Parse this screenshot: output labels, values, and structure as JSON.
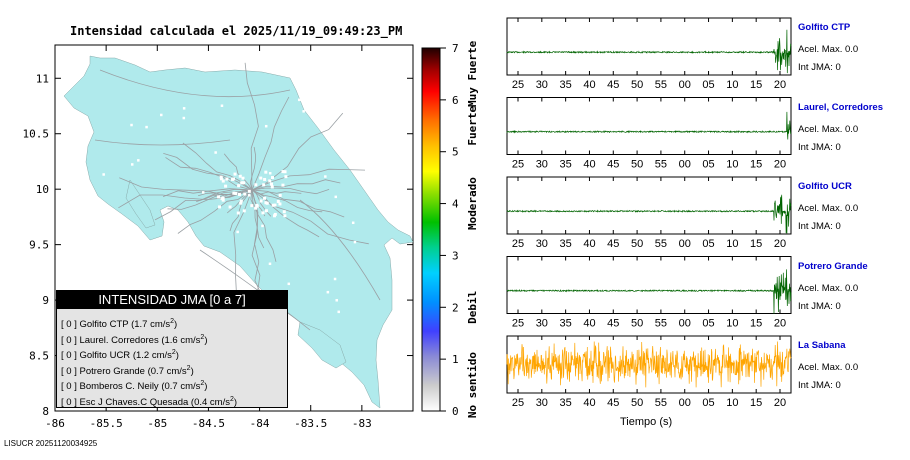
{
  "map": {
    "title": "Intensidad calculada el 2025/11/19_09:49:23_PM",
    "x_ticks": [
      "-86",
      "-85.5",
      "-85",
      "-84.5",
      "-84",
      "-83.5",
      "-83"
    ],
    "x_values": [
      -86,
      -85.5,
      -85,
      -84.5,
      -84,
      -83.5,
      -83
    ],
    "y_ticks": [
      "11",
      "10.5",
      "10",
      "9.5",
      "9",
      "8.5",
      "8"
    ],
    "y_values": [
      11,
      10.5,
      10,
      9.5,
      9,
      8.5,
      8
    ],
    "xlim": [
      -86,
      -82.5
    ],
    "ylim": [
      8,
      11.3
    ],
    "land_color": "#b0eaec"
  },
  "colorbar": {
    "ticks": [
      "0",
      "1",
      "2",
      "3",
      "4",
      "5",
      "6",
      "7"
    ],
    "tick_values": [
      0,
      1,
      2,
      3,
      4,
      5,
      6,
      7
    ],
    "categories": [
      "No sentido",
      "Debil",
      "Moderado",
      "Fuerte",
      "Muy Fuerte"
    ],
    "category_levels": [
      0.5,
      2,
      4,
      5.5,
      6.5
    ],
    "range": [
      0,
      7
    ]
  },
  "legend": {
    "title": "INTENSIDAD JMA [0 a 7]",
    "items": [
      {
        "jma": "[ 0 ]",
        "station": "Golfito CTP",
        "accel": "(1.7 cm/s",
        "unit_exp": "2",
        "close": ")"
      },
      {
        "jma": "[ 0 ]",
        "station": "Laurel. Corredores",
        "accel": "(1.6 cm/s",
        "unit_exp": "2",
        "close": ")"
      },
      {
        "jma": "[ 0 ]",
        "station": "Golfito UCR",
        "accel": "(1.2 cm/s",
        "unit_exp": "2",
        "close": ")"
      },
      {
        "jma": "[ 0 ]",
        "station": "Potrero Grande",
        "accel": "(0.7 cm/s",
        "unit_exp": "2",
        "close": ")"
      },
      {
        "jma": "[ 0 ]",
        "station": "Bomberos C. Neily",
        "accel": "(0.7 cm/s",
        "unit_exp": "2",
        "close": ")"
      },
      {
        "jma": "[ 0 ]",
        "station": "Esc J Chaves.C Quesada",
        "accel": "(0.4 cm/s",
        "unit_exp": "2",
        "close": ")"
      }
    ]
  },
  "chart_data": [
    {
      "type": "line",
      "x_tick_labels": [
        "25",
        "30",
        "35",
        "40",
        "45",
        "50",
        "55",
        "00",
        "05",
        "10",
        "15",
        "20"
      ],
      "xlabel": "Tiempo (s)",
      "series": [
        {
          "name": "Golfito CTP",
          "accel_text": "Acel. Max. 0.0",
          "jma_text": "Int JMA: 0",
          "color": "#006400",
          "burst_start": 0.94,
          "style": "burst"
        },
        {
          "name": "Laurel, Corredores",
          "accel_text": "Acel. Max. 0.0",
          "jma_text": "Int JMA: 0",
          "color": "#006400",
          "burst_start": 0.985,
          "style": "burst"
        },
        {
          "name": "Golfito UCR",
          "accel_text": "Acel. Max. 0.0",
          "jma_text": "Int JMA: 0",
          "color": "#006400",
          "burst_start": 0.94,
          "style": "burst"
        },
        {
          "name": "Potrero Grande",
          "accel_text": "Acel. Max. 0.0",
          "jma_text": "Int JMA: 0",
          "color": "#006400",
          "burst_start": 0.94,
          "style": "burst"
        },
        {
          "name": "La Sabana",
          "accel_text": "Acel. Max. 0.0",
          "jma_text": "Int JMA: 0",
          "color": "#ffa500",
          "burst_start": 0,
          "style": "noise"
        }
      ]
    }
  ],
  "footer": {
    "id": "LISUCR 20251120034925"
  }
}
